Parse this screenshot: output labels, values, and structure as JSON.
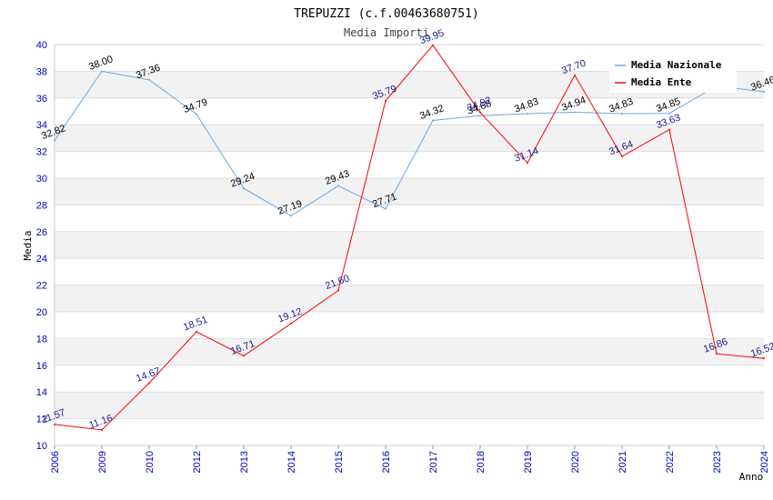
{
  "chart_data": {
    "type": "line",
    "title": "TREPUZZI (c.f.00463680751)",
    "subtitle": "Media Importi",
    "xlabel": "Anno",
    "ylabel": "Media",
    "ylim": [
      10,
      40
    ],
    "yticks": [
      10,
      12,
      14,
      16,
      18,
      20,
      22,
      24,
      26,
      28,
      30,
      32,
      34,
      36,
      38,
      40
    ],
    "grid": true,
    "legend_position": "top-right",
    "categories": [
      "2006",
      "2009",
      "2010",
      "2012",
      "2013",
      "2014",
      "2015",
      "2016",
      "2017",
      "2018",
      "2019",
      "2020",
      "2021",
      "2022",
      "2023",
      "2024"
    ],
    "series": [
      {
        "name": "Media Nazionale",
        "color": "#6aa7e0",
        "values": [
          32.82,
          38.0,
          37.36,
          34.79,
          29.24,
          27.19,
          29.43,
          27.71,
          34.32,
          34.68,
          34.83,
          34.94,
          34.83,
          34.85,
          36.9,
          36.46
        ],
        "labels": [
          "32.82",
          "38.00",
          "37.36",
          "34.79",
          "29.24",
          "27.19",
          "29.43",
          "27.71",
          "34.32",
          "34.68",
          "34.83",
          "34.94",
          "34.83",
          "34.85",
          "",
          "36.46"
        ]
      },
      {
        "name": "Media Ente",
        "color": "#ff0000",
        "values": [
          11.57,
          11.16,
          14.67,
          18.51,
          16.71,
          19.12,
          21.6,
          35.79,
          39.95,
          34.92,
          31.14,
          37.7,
          31.64,
          33.63,
          16.86,
          16.52
        ],
        "labels": [
          "11.57",
          "11.16",
          "14.67",
          "18.51",
          "16.71",
          "19.12",
          "21.60",
          "35.79",
          "39.95",
          "34.92",
          "31.14",
          "37.70",
          "31.64",
          "33.63",
          "16.86",
          "16.52"
        ]
      }
    ]
  }
}
